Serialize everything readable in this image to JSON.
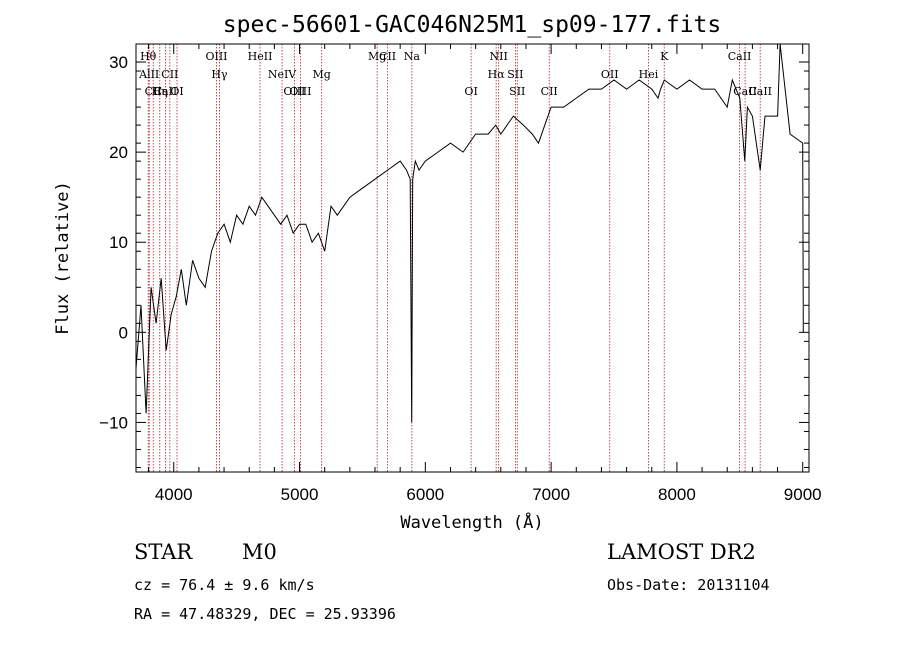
{
  "chart_data": {
    "type": "line",
    "title": "spec-56601-GAC046N25M1_sp09-177.fits",
    "xlabel": "Wavelength (Å)",
    "ylabel": "Flux (relative)",
    "xlim": [
      3700,
      9050
    ],
    "ylim": [
      -15.5,
      32
    ],
    "xticks": [
      4000,
      5000,
      6000,
      7000,
      8000,
      9000
    ],
    "yticks": [
      -10,
      0,
      10,
      20,
      30
    ],
    "xtick_labels": [
      "4000",
      "5000",
      "6000",
      "7000",
      "8000",
      "9000"
    ],
    "ytick_labels": [
      "−10",
      "0",
      "10",
      "20",
      "30"
    ],
    "grid": false,
    "line_color": "#000000",
    "marker_color": "#b22222",
    "spectrum": {
      "x": [
        3700,
        3740,
        3780,
        3820,
        3860,
        3900,
        3940,
        3980,
        4020,
        4060,
        4100,
        4150,
        4200,
        4250,
        4300,
        4350,
        4400,
        4450,
        4500,
        4550,
        4600,
        4650,
        4700,
        4750,
        4800,
        4850,
        4900,
        4950,
        5000,
        5050,
        5100,
        5150,
        5200,
        5250,
        5300,
        5400,
        5500,
        5600,
        5700,
        5800,
        5850,
        5880,
        5892,
        5900,
        5920,
        5950,
        6000,
        6100,
        6200,
        6300,
        6400,
        6500,
        6560,
        6600,
        6700,
        6780,
        6850,
        6900,
        6950,
        7000,
        7100,
        7200,
        7300,
        7400,
        7500,
        7600,
        7700,
        7800,
        7850,
        7870,
        7900,
        8000,
        8100,
        8200,
        8300,
        8400,
        8440,
        8500,
        8540,
        8560,
        8600,
        8662,
        8700,
        8800,
        8820,
        8900,
        9000,
        9005
      ],
      "y": [
        -4,
        3,
        -9,
        5,
        1,
        6,
        -2,
        2,
        4,
        7,
        3,
        8,
        6,
        5,
        9,
        11,
        12,
        10,
        13,
        12,
        14,
        13,
        15,
        14,
        13,
        12,
        13,
        11,
        12,
        12,
        10,
        11,
        9,
        14,
        13,
        15,
        16,
        17,
        18,
        19,
        18,
        17,
        -10,
        17,
        19,
        18,
        19,
        20,
        21,
        20,
        22,
        22,
        23,
        22,
        24,
        23,
        22,
        21,
        23,
        25,
        25,
        26,
        27,
        27,
        28,
        27,
        28,
        27,
        26,
        27,
        28,
        27,
        28,
        27,
        27,
        25,
        28,
        26,
        19,
        25,
        24,
        18,
        24,
        24,
        32,
        22,
        21,
        0
      ]
    },
    "lines": [
      {
        "name": "Hθ",
        "x": 3797,
        "row": 1
      },
      {
        "name": "AlII",
        "x": 3805,
        "row": 2
      },
      {
        "name": "CII",
        "x": 3837,
        "row": 3
      },
      {
        "name": "Hη",
        "x": 3889,
        "row": 3
      },
      {
        "name": "CaII",
        "x": 3934,
        "row": 3
      },
      {
        "name": "CII",
        "x": 3969,
        "row": 2
      },
      {
        "name": "OI",
        "x": 4026,
        "row": 3
      },
      {
        "name": "OIII",
        "x": 4340,
        "row": 1
      },
      {
        "name": "Hγ",
        "x": 4363,
        "row": 2
      },
      {
        "name": "HeII",
        "x": 4686,
        "row": 1
      },
      {
        "name": "NeIV",
        "x": 4861,
        "row": 2
      },
      {
        "name": "OIII",
        "x": 4959,
        "row": 3
      },
      {
        "name": "OIII",
        "x": 5007,
        "row": 3
      },
      {
        "name": "Mg",
        "x": 5176,
        "row": 2
      },
      {
        "name": "Mg",
        "x": 5617,
        "row": 1
      },
      {
        "name": "CII",
        "x": 5700,
        "row": 1
      },
      {
        "name": "Na",
        "x": 5893,
        "row": 1
      },
      {
        "name": "OI",
        "x": 6364,
        "row": 3
      },
      {
        "name": "NII",
        "x": 6583,
        "row": 1
      },
      {
        "name": "Hα",
        "x": 6563,
        "row": 2
      },
      {
        "name": "SII",
        "x": 6716,
        "row": 2
      },
      {
        "name": "SII",
        "x": 6731,
        "row": 3
      },
      {
        "name": "CII",
        "x": 6985,
        "row": 3
      },
      {
        "name": "OII",
        "x": 7466,
        "row": 2
      },
      {
        "name": "K",
        "x": 7899,
        "row": 1
      },
      {
        "name": "Hei",
        "x": 7774,
        "row": 2
      },
      {
        "name": "CaII",
        "x": 8498,
        "row": 1
      },
      {
        "name": "CaII",
        "x": 8542,
        "row": 3
      },
      {
        "name": "CaII",
        "x": 8662,
        "row": 3
      }
    ]
  },
  "info": {
    "object_class": "STAR",
    "subclass": "M0",
    "survey": "LAMOST DR2",
    "cz": "cz = 76.4 ± 9.6 km/s",
    "obs_date": "Obs-Date: 20131104",
    "coords": "RA =  47.48329, DEC =  25.93396"
  }
}
